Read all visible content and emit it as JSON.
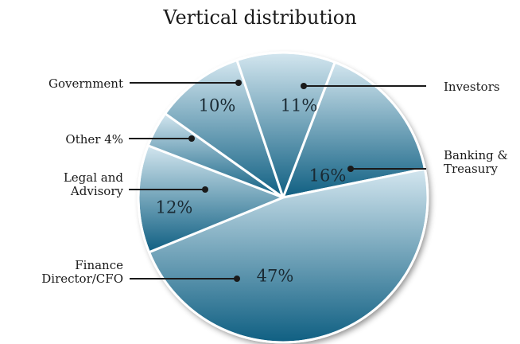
{
  "chart_data": {
    "type": "pie",
    "title": "Vertical distribution",
    "slices": [
      {
        "name": "Banking & Treasury",
        "label_lines": [
          "Banking &",
          "Treasury"
        ],
        "value": 16,
        "percent_label": "16%"
      },
      {
        "name": "Finance Director/CFO",
        "label_lines": [
          "Finance",
          "Director/CFO"
        ],
        "value": 47,
        "percent_label": "47%"
      },
      {
        "name": "Legal and Advisory",
        "label_lines": [
          "Legal and",
          "Advisory"
        ],
        "value": 12,
        "percent_label": "12%"
      },
      {
        "name": "Other",
        "label_lines": [
          "Other 4%"
        ],
        "value": 4,
        "percent_label": ""
      },
      {
        "name": "Government",
        "label_lines": [
          "Government"
        ],
        "value": 10,
        "percent_label": "10%"
      },
      {
        "name": "Investors",
        "label_lines": [
          "Investors"
        ],
        "value": 11,
        "percent_label": "11%"
      }
    ],
    "colors": {
      "dark": "#0f5f82",
      "light": "#d3e6ef",
      "divider": "#ffffff",
      "leader": "#1a1a1a"
    }
  }
}
